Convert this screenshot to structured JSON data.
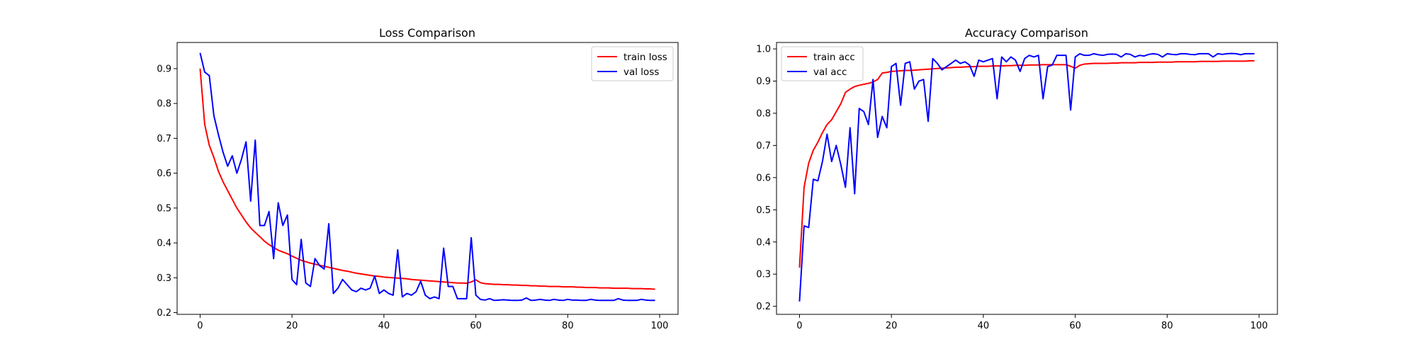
{
  "chart_data": [
    {
      "type": "line",
      "title": "Loss Comparison",
      "xlabel": "",
      "ylabel": "",
      "xlim": [
        -5,
        104
      ],
      "ylim": [
        0.195,
        0.975
      ],
      "xticks": [
        0,
        20,
        40,
        60,
        80,
        100
      ],
      "yticks": [
        0.2,
        0.3,
        0.4,
        0.5,
        0.6,
        0.7,
        0.8,
        0.9
      ],
      "xtick_labels": [
        "0",
        "20",
        "40",
        "60",
        "80",
        "100"
      ],
      "ytick_labels": [
        "0.2",
        "0.3",
        "0.4",
        "0.5",
        "0.6",
        "0.7",
        "0.8",
        "0.9"
      ],
      "grid": false,
      "legend_position": "upper right",
      "series": [
        {
          "name": "train loss",
          "color": "#ff0000",
          "values": [
            0.9,
            0.74,
            0.68,
            0.645,
            0.605,
            0.575,
            0.55,
            0.525,
            0.5,
            0.48,
            0.46,
            0.443,
            0.43,
            0.418,
            0.405,
            0.395,
            0.387,
            0.379,
            0.374,
            0.369,
            0.362,
            0.356,
            0.35,
            0.346,
            0.342,
            0.339,
            0.336,
            0.333,
            0.33,
            0.327,
            0.324,
            0.321,
            0.319,
            0.316,
            0.313,
            0.311,
            0.309,
            0.307,
            0.305,
            0.304,
            0.302,
            0.301,
            0.3,
            0.299,
            0.298,
            0.297,
            0.295,
            0.294,
            0.293,
            0.292,
            0.291,
            0.29,
            0.289,
            0.288,
            0.287,
            0.286,
            0.285,
            0.285,
            0.284,
            0.288,
            0.294,
            0.286,
            0.283,
            0.282,
            0.281,
            0.281,
            0.28,
            0.28,
            0.279,
            0.279,
            0.278,
            0.278,
            0.277,
            0.277,
            0.276,
            0.276,
            0.275,
            0.275,
            0.275,
            0.274,
            0.274,
            0.274,
            0.273,
            0.273,
            0.272,
            0.272,
            0.272,
            0.271,
            0.271,
            0.271,
            0.27,
            0.27,
            0.27,
            0.27,
            0.269,
            0.269,
            0.269,
            0.268,
            0.268,
            0.267
          ]
        },
        {
          "name": "val loss",
          "color": "#0000ff",
          "values": [
            0.945,
            0.89,
            0.88,
            0.765,
            0.71,
            0.66,
            0.62,
            0.65,
            0.6,
            0.64,
            0.69,
            0.52,
            0.695,
            0.45,
            0.45,
            0.49,
            0.355,
            0.515,
            0.45,
            0.48,
            0.295,
            0.28,
            0.41,
            0.285,
            0.275,
            0.355,
            0.335,
            0.325,
            0.455,
            0.255,
            0.27,
            0.295,
            0.28,
            0.265,
            0.26,
            0.27,
            0.265,
            0.27,
            0.305,
            0.255,
            0.265,
            0.255,
            0.25,
            0.38,
            0.245,
            0.255,
            0.25,
            0.26,
            0.29,
            0.25,
            0.24,
            0.245,
            0.24,
            0.385,
            0.275,
            0.275,
            0.24,
            0.24,
            0.24,
            0.415,
            0.25,
            0.238,
            0.236,
            0.24,
            0.235,
            0.236,
            0.237,
            0.236,
            0.235,
            0.235,
            0.236,
            0.242,
            0.235,
            0.236,
            0.238,
            0.236,
            0.235,
            0.238,
            0.236,
            0.235,
            0.238,
            0.236,
            0.236,
            0.235,
            0.235,
            0.238,
            0.236,
            0.235,
            0.235,
            0.235,
            0.235,
            0.24,
            0.236,
            0.235,
            0.235,
            0.235,
            0.238,
            0.236,
            0.235,
            0.235
          ]
        }
      ]
    },
    {
      "type": "line",
      "title": "Accuracy Comparison",
      "xlabel": "",
      "ylabel": "",
      "xlim": [
        -5,
        104
      ],
      "ylim": [
        0.175,
        1.02
      ],
      "xticks": [
        0,
        20,
        40,
        60,
        80,
        100
      ],
      "yticks": [
        0.2,
        0.3,
        0.4,
        0.5,
        0.6,
        0.7,
        0.8,
        0.9,
        1.0
      ],
      "xtick_labels": [
        "0",
        "20",
        "40",
        "60",
        "80",
        "100"
      ],
      "ytick_labels": [
        "0.2",
        "0.3",
        "0.4",
        "0.5",
        "0.6",
        "0.7",
        "0.8",
        "0.9",
        "1.0"
      ],
      "grid": false,
      "legend_position": "upper left",
      "series": [
        {
          "name": "train acc",
          "color": "#ff0000",
          "values": [
            0.32,
            0.57,
            0.645,
            0.685,
            0.71,
            0.74,
            0.765,
            0.78,
            0.805,
            0.83,
            0.865,
            0.875,
            0.883,
            0.887,
            0.89,
            0.893,
            0.897,
            0.905,
            0.925,
            0.927,
            0.93,
            0.931,
            0.932,
            0.933,
            0.933,
            0.934,
            0.935,
            0.936,
            0.937,
            0.938,
            0.939,
            0.94,
            0.941,
            0.942,
            0.943,
            0.943,
            0.944,
            0.945,
            0.945,
            0.946,
            0.946,
            0.946,
            0.947,
            0.947,
            0.947,
            0.948,
            0.948,
            0.949,
            0.949,
            0.949,
            0.95,
            0.95,
            0.95,
            0.951,
            0.951,
            0.951,
            0.951,
            0.951,
            0.951,
            0.946,
            0.94,
            0.949,
            0.953,
            0.954,
            0.955,
            0.955,
            0.955,
            0.955,
            0.956,
            0.956,
            0.957,
            0.957,
            0.957,
            0.957,
            0.958,
            0.958,
            0.958,
            0.958,
            0.959,
            0.959,
            0.959,
            0.959,
            0.96,
            0.96,
            0.96,
            0.96,
            0.96,
            0.961,
            0.961,
            0.961,
            0.961,
            0.961,
            0.962,
            0.962,
            0.962,
            0.962,
            0.962,
            0.962,
            0.963,
            0.963
          ]
        },
        {
          "name": "val acc",
          "color": "#0000ff",
          "values": [
            0.215,
            0.45,
            0.445,
            0.595,
            0.59,
            0.65,
            0.735,
            0.65,
            0.7,
            0.64,
            0.57,
            0.755,
            0.55,
            0.815,
            0.805,
            0.765,
            0.905,
            0.725,
            0.79,
            0.755,
            0.945,
            0.955,
            0.825,
            0.955,
            0.96,
            0.875,
            0.9,
            0.905,
            0.775,
            0.97,
            0.955,
            0.935,
            0.945,
            0.955,
            0.965,
            0.955,
            0.96,
            0.95,
            0.915,
            0.965,
            0.96,
            0.965,
            0.97,
            0.845,
            0.975,
            0.96,
            0.975,
            0.965,
            0.93,
            0.97,
            0.98,
            0.975,
            0.98,
            0.845,
            0.945,
            0.95,
            0.98,
            0.98,
            0.98,
            0.81,
            0.975,
            0.985,
            0.98,
            0.98,
            0.985,
            0.982,
            0.98,
            0.983,
            0.984,
            0.983,
            0.975,
            0.985,
            0.983,
            0.975,
            0.98,
            0.978,
            0.983,
            0.985,
            0.983,
            0.975,
            0.985,
            0.983,
            0.982,
            0.985,
            0.985,
            0.983,
            0.982,
            0.985,
            0.985,
            0.985,
            0.975,
            0.985,
            0.983,
            0.985,
            0.986,
            0.985,
            0.982,
            0.985,
            0.985,
            0.985
          ]
        }
      ]
    }
  ]
}
